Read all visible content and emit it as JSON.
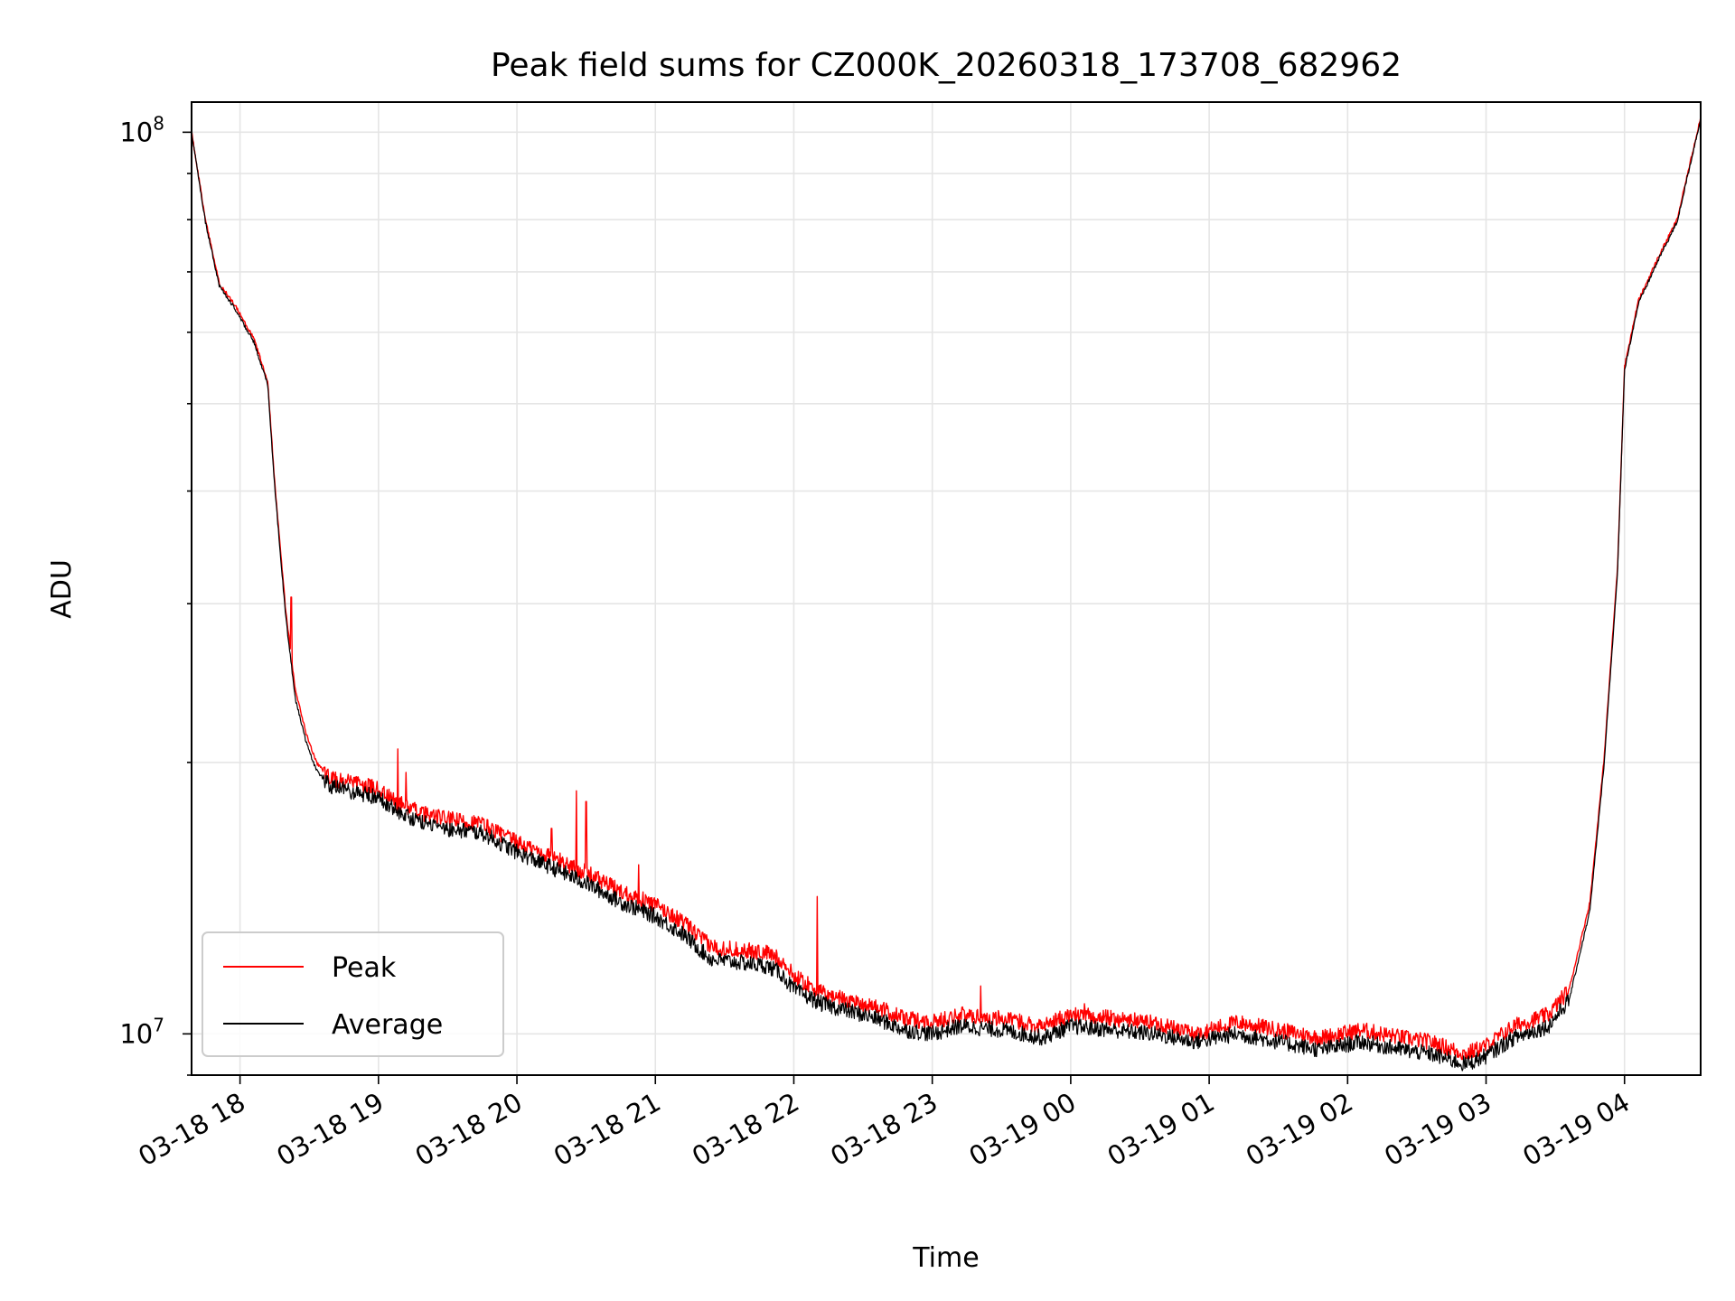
{
  "chart_data": {
    "type": "line",
    "title": "Peak field sums for CZ000K_20260318_173708_682962",
    "xlabel": "Time",
    "ylabel": "ADU",
    "yscale": "log",
    "ylim": [
      9000000,
      108000000
    ],
    "xlim_hours": [
      17.65,
      28.55
    ],
    "x_ticks": [
      {
        "label": "03-18 18",
        "hours": 18
      },
      {
        "label": "03-18 19",
        "hours": 19
      },
      {
        "label": "03-18 20",
        "hours": 20
      },
      {
        "label": "03-18 21",
        "hours": 21
      },
      {
        "label": "03-18 22",
        "hours": 22
      },
      {
        "label": "03-18 23",
        "hours": 23
      },
      {
        "label": "03-19 00",
        "hours": 24
      },
      {
        "label": "03-19 01",
        "hours": 25
      },
      {
        "label": "03-19 02",
        "hours": 26
      },
      {
        "label": "03-19 03",
        "hours": 27
      },
      {
        "label": "03-19 04",
        "hours": 28
      }
    ],
    "y_ticks": [
      {
        "base": "10",
        "exp": "7",
        "value": 10000000
      },
      {
        "base": "10",
        "exp": "8",
        "value": 100000000
      }
    ],
    "x_hours": [
      17.65,
      17.75,
      17.85,
      17.97,
      18.1,
      18.2,
      18.25,
      18.33,
      18.4,
      18.48,
      18.55,
      18.65,
      19.0,
      19.12,
      19.3,
      19.5,
      19.75,
      20.0,
      20.25,
      20.5,
      20.75,
      21.0,
      21.2,
      21.4,
      21.6,
      21.8,
      21.9,
      22.0,
      22.2,
      22.4,
      22.6,
      22.8,
      23.0,
      23.2,
      23.5,
      23.8,
      24.0,
      24.3,
      24.6,
      24.9,
      25.2,
      25.5,
      25.8,
      26.1,
      26.4,
      26.6,
      26.85,
      27.0,
      27.2,
      27.45,
      27.6,
      27.75,
      27.85,
      27.95,
      28.0,
      28.1,
      28.25,
      28.38,
      28.55
    ],
    "series": [
      {
        "name": "Peak",
        "color": "#ff0000",
        "values": [
          100000000,
          80000000,
          68000000,
          64000000,
          59000000,
          53000000,
          41000000,
          29500000,
          24000000,
          21500000,
          20000000,
          19200000,
          18700000,
          18100000,
          17600000,
          17300000,
          17100000,
          16300000,
          15700000,
          15100000,
          14400000,
          13900000,
          13300000,
          12500000,
          12400000,
          12300000,
          12100000,
          11600000,
          11100000,
          10900000,
          10700000,
          10400000,
          10300000,
          10500000,
          10400000,
          10200000,
          10500000,
          10400000,
          10300000,
          10000000,
          10300000,
          10100000,
          9900000,
          10100000,
          9900000,
          9800000,
          9500000,
          9700000,
          10200000,
          10500000,
          11200000,
          14000000,
          20000000,
          33000000,
          55000000,
          65000000,
          73000000,
          80000000,
          104000000
        ]
      },
      {
        "name": "Average",
        "color": "#000000",
        "values": [
          100000000,
          79500000,
          67500000,
          63500000,
          58500000,
          52500000,
          40500000,
          29000000,
          23500000,
          21000000,
          19600000,
          18800000,
          18300000,
          17700000,
          17200000,
          16900000,
          16700000,
          15900000,
          15300000,
          14700000,
          14000000,
          13500000,
          12900000,
          12100000,
          12000000,
          11900000,
          11700000,
          11200000,
          10800000,
          10600000,
          10400000,
          10100000,
          10000000,
          10200000,
          10100000,
          9900000,
          10200000,
          10100000,
          10000000,
          9800000,
          10000000,
          9800000,
          9600000,
          9800000,
          9600000,
          9500000,
          9250000,
          9450000,
          9900000,
          10200000,
          10900000,
          13700000,
          19700000,
          32500000,
          54500000,
          64500000,
          72500000,
          79500000,
          103500000
        ]
      }
    ],
    "spikes_peak": [
      {
        "hours": 18.37,
        "value": 30500000
      },
      {
        "hours": 19.14,
        "value": 20700000
      },
      {
        "hours": 19.2,
        "value": 19500000
      },
      {
        "hours": 20.25,
        "value": 16900000
      },
      {
        "hours": 20.43,
        "value": 18600000
      },
      {
        "hours": 20.5,
        "value": 18100000
      },
      {
        "hours": 20.88,
        "value": 15400000
      },
      {
        "hours": 22.17,
        "value": 14200000
      },
      {
        "hours": 23.35,
        "value": 11300000
      },
      {
        "hours": 24.1,
        "value": 10800000
      }
    ],
    "legend": {
      "position": "lower-left",
      "entries": [
        {
          "label": "Peak",
          "color": "#ff0000"
        },
        {
          "label": "Average",
          "color": "#000000"
        }
      ]
    },
    "grid": true
  }
}
